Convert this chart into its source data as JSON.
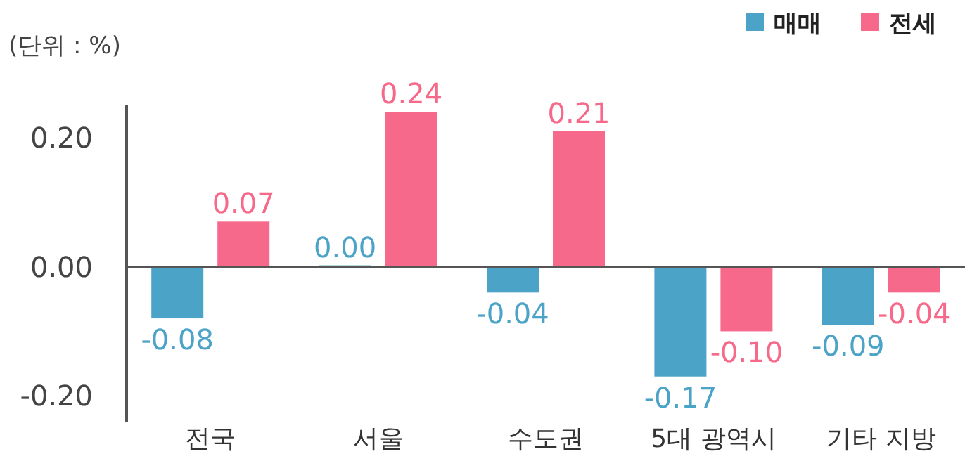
{
  "chart_data": {
    "type": "bar",
    "categories": [
      "전국",
      "서울",
      "수도권",
      "5대 광역시",
      "기타 지방"
    ],
    "series": [
      {
        "name": "매매",
        "color": "#4ba3c7",
        "values": [
          -0.08,
          0.0,
          -0.04,
          -0.17,
          -0.09
        ],
        "value_labels": [
          "-0.08",
          "0.00",
          "-0.04",
          "-0.17",
          "-0.09"
        ]
      },
      {
        "name": "전세",
        "color": "#f7698a",
        "values": [
          0.07,
          0.24,
          0.21,
          -0.1,
          -0.04
        ],
        "value_labels": [
          "0.07",
          "0.24",
          "0.21",
          "-0.10",
          "-0.04"
        ]
      }
    ],
    "ylim": [
      -0.24,
      0.25
    ],
    "yticks": [
      {
        "value": 0.2,
        "label": "0.20"
      },
      {
        "value": 0,
        "label": "0.00"
      },
      {
        "value": -0.2,
        "label": "-0.20"
      }
    ],
    "annotations": [
      "(단위 : %)"
    ],
    "ref_lines": [
      {
        "axis": "y",
        "value": 0,
        "color": "#555555"
      }
    ],
    "legend": "top right"
  }
}
